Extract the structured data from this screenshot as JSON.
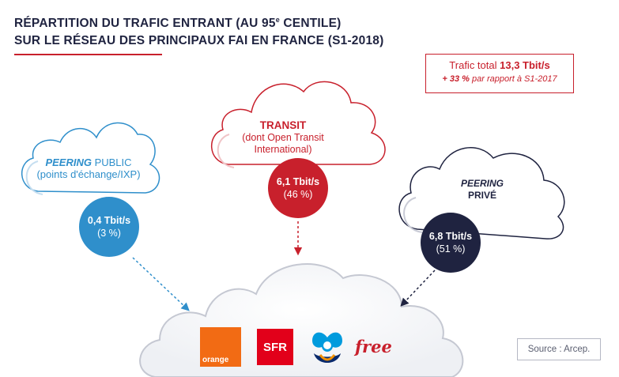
{
  "title": {
    "line1_pre": "RÉPARTITION DU TRAFIC ENTRANT (AU 95",
    "line1_sup": "e",
    "line1_post": " CENTILE)",
    "line2": "SUR LE RÉSEAU DES PRINCIPAUX FAI EN FRANCE (S1-2018)"
  },
  "total": {
    "prefix": "Trafic total ",
    "value": "13,3 Tbit/s",
    "growth_value": "+ 33 %",
    "growth_text": " par rapport à S1-2017"
  },
  "peering_public": {
    "label_bold": "PEERING",
    "label_rest": " PUBLIC",
    "sublabel": "(points d'échange/IXP)",
    "value": "0,4 Tbit/s",
    "share": "(3 %)"
  },
  "transit": {
    "label": "TRANSIT",
    "sublabel_1": "(dont Open Transit",
    "sublabel_2": "International)",
    "value": "6,1 Tbit/s",
    "share": "(46 %)"
  },
  "peering_prive": {
    "label_italic": "PEERING",
    "label_2": "PRIVÉ",
    "value": "6,8 Tbit/s",
    "share": "(51 %)"
  },
  "isps": {
    "orange": "orange",
    "sfr": "SFR",
    "bouygues": "Bouygues Telecom",
    "free": "free"
  },
  "source": "Source : Arcep.",
  "colors": {
    "navy": "#1f2340",
    "red": "#c8202c",
    "blue": "#2f8fcb",
    "orange": "#f26b14",
    "sfr_red": "#e2001a"
  }
}
